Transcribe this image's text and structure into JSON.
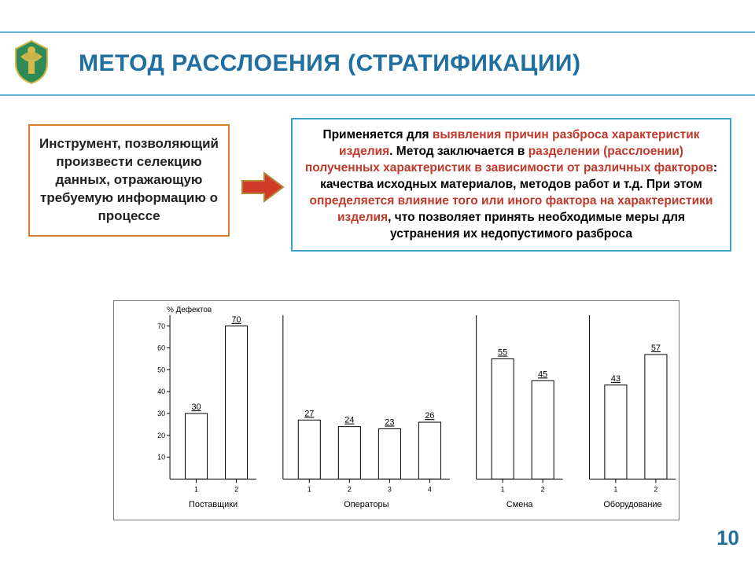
{
  "title": "МЕТОД РАССЛОЕНИЯ (СТРАТИФИКАЦИИ)",
  "page_number": "10",
  "colors": {
    "rule": "#5fb3d9",
    "title": "#1f6fa0",
    "orange_border": "#d97b2b",
    "blue_border": "#3aa5c9",
    "highlight": "#c0392b",
    "arrow_fill": "#d23a2a",
    "arrow_border": "#b08a3a",
    "emblem_gold": "#d6b94a",
    "emblem_green": "#2e8b57",
    "frame_border": "#777777",
    "bar_fill": "#ffffff",
    "bar_stroke": "#000000",
    "axis": "#000000",
    "text": "#000000"
  },
  "left_box": {
    "text": "Инструмент, позволяющий произвести селекцию данных, отражающую требуемую информацию о процессе"
  },
  "right_box": {
    "segments": [
      {
        "t": "Применяется для ",
        "hl": false
      },
      {
        "t": "выявления причин разброса характеристик изделия",
        "hl": true
      },
      {
        "t": ". Метод заключается в ",
        "hl": false
      },
      {
        "t": "разделении (расслоении) полученных характеристик в зависимости от различных факторов",
        "hl": true
      },
      {
        "t": ": качества исходных материалов, методов работ и т.д. При этом ",
        "hl": false
      },
      {
        "t": "определяется влияние того или иного фактора на характеристики изделия",
        "hl": true
      },
      {
        "t": ", что позволяет принять необходимые меры для устранения их недопустимого разброса",
        "hl": false
      }
    ]
  },
  "chart": {
    "type": "bar",
    "y_label": "% Дефектов",
    "y_label_fontsize": 10,
    "ylim": [
      0,
      75
    ],
    "ytick_step": 10,
    "yticks": [
      10,
      20,
      30,
      40,
      50,
      60,
      70
    ],
    "axis_fontsize": 9,
    "value_label_fontsize": 11,
    "group_label_fontsize": 11,
    "bar_width": 0.55,
    "bar_fill": "#ffffff",
    "bar_stroke": "#000000",
    "bar_stroke_width": 1,
    "background_color": "#ffffff",
    "groups": [
      {
        "name": "Поставщики",
        "bars": [
          {
            "x": "1",
            "v": 30
          },
          {
            "x": "2",
            "v": 70
          }
        ]
      },
      {
        "name": "Операторы",
        "bars": [
          {
            "x": "1",
            "v": 27
          },
          {
            "x": "2",
            "v": 24
          },
          {
            "x": "3",
            "v": 23
          },
          {
            "x": "4",
            "v": 26
          }
        ]
      },
      {
        "name": "Смена",
        "bars": [
          {
            "x": "1",
            "v": 55
          },
          {
            "x": "2",
            "v": 45
          }
        ]
      },
      {
        "name": "Оборудование",
        "bars": [
          {
            "x": "1",
            "v": 43
          },
          {
            "x": "2",
            "v": 57
          }
        ]
      }
    ]
  }
}
